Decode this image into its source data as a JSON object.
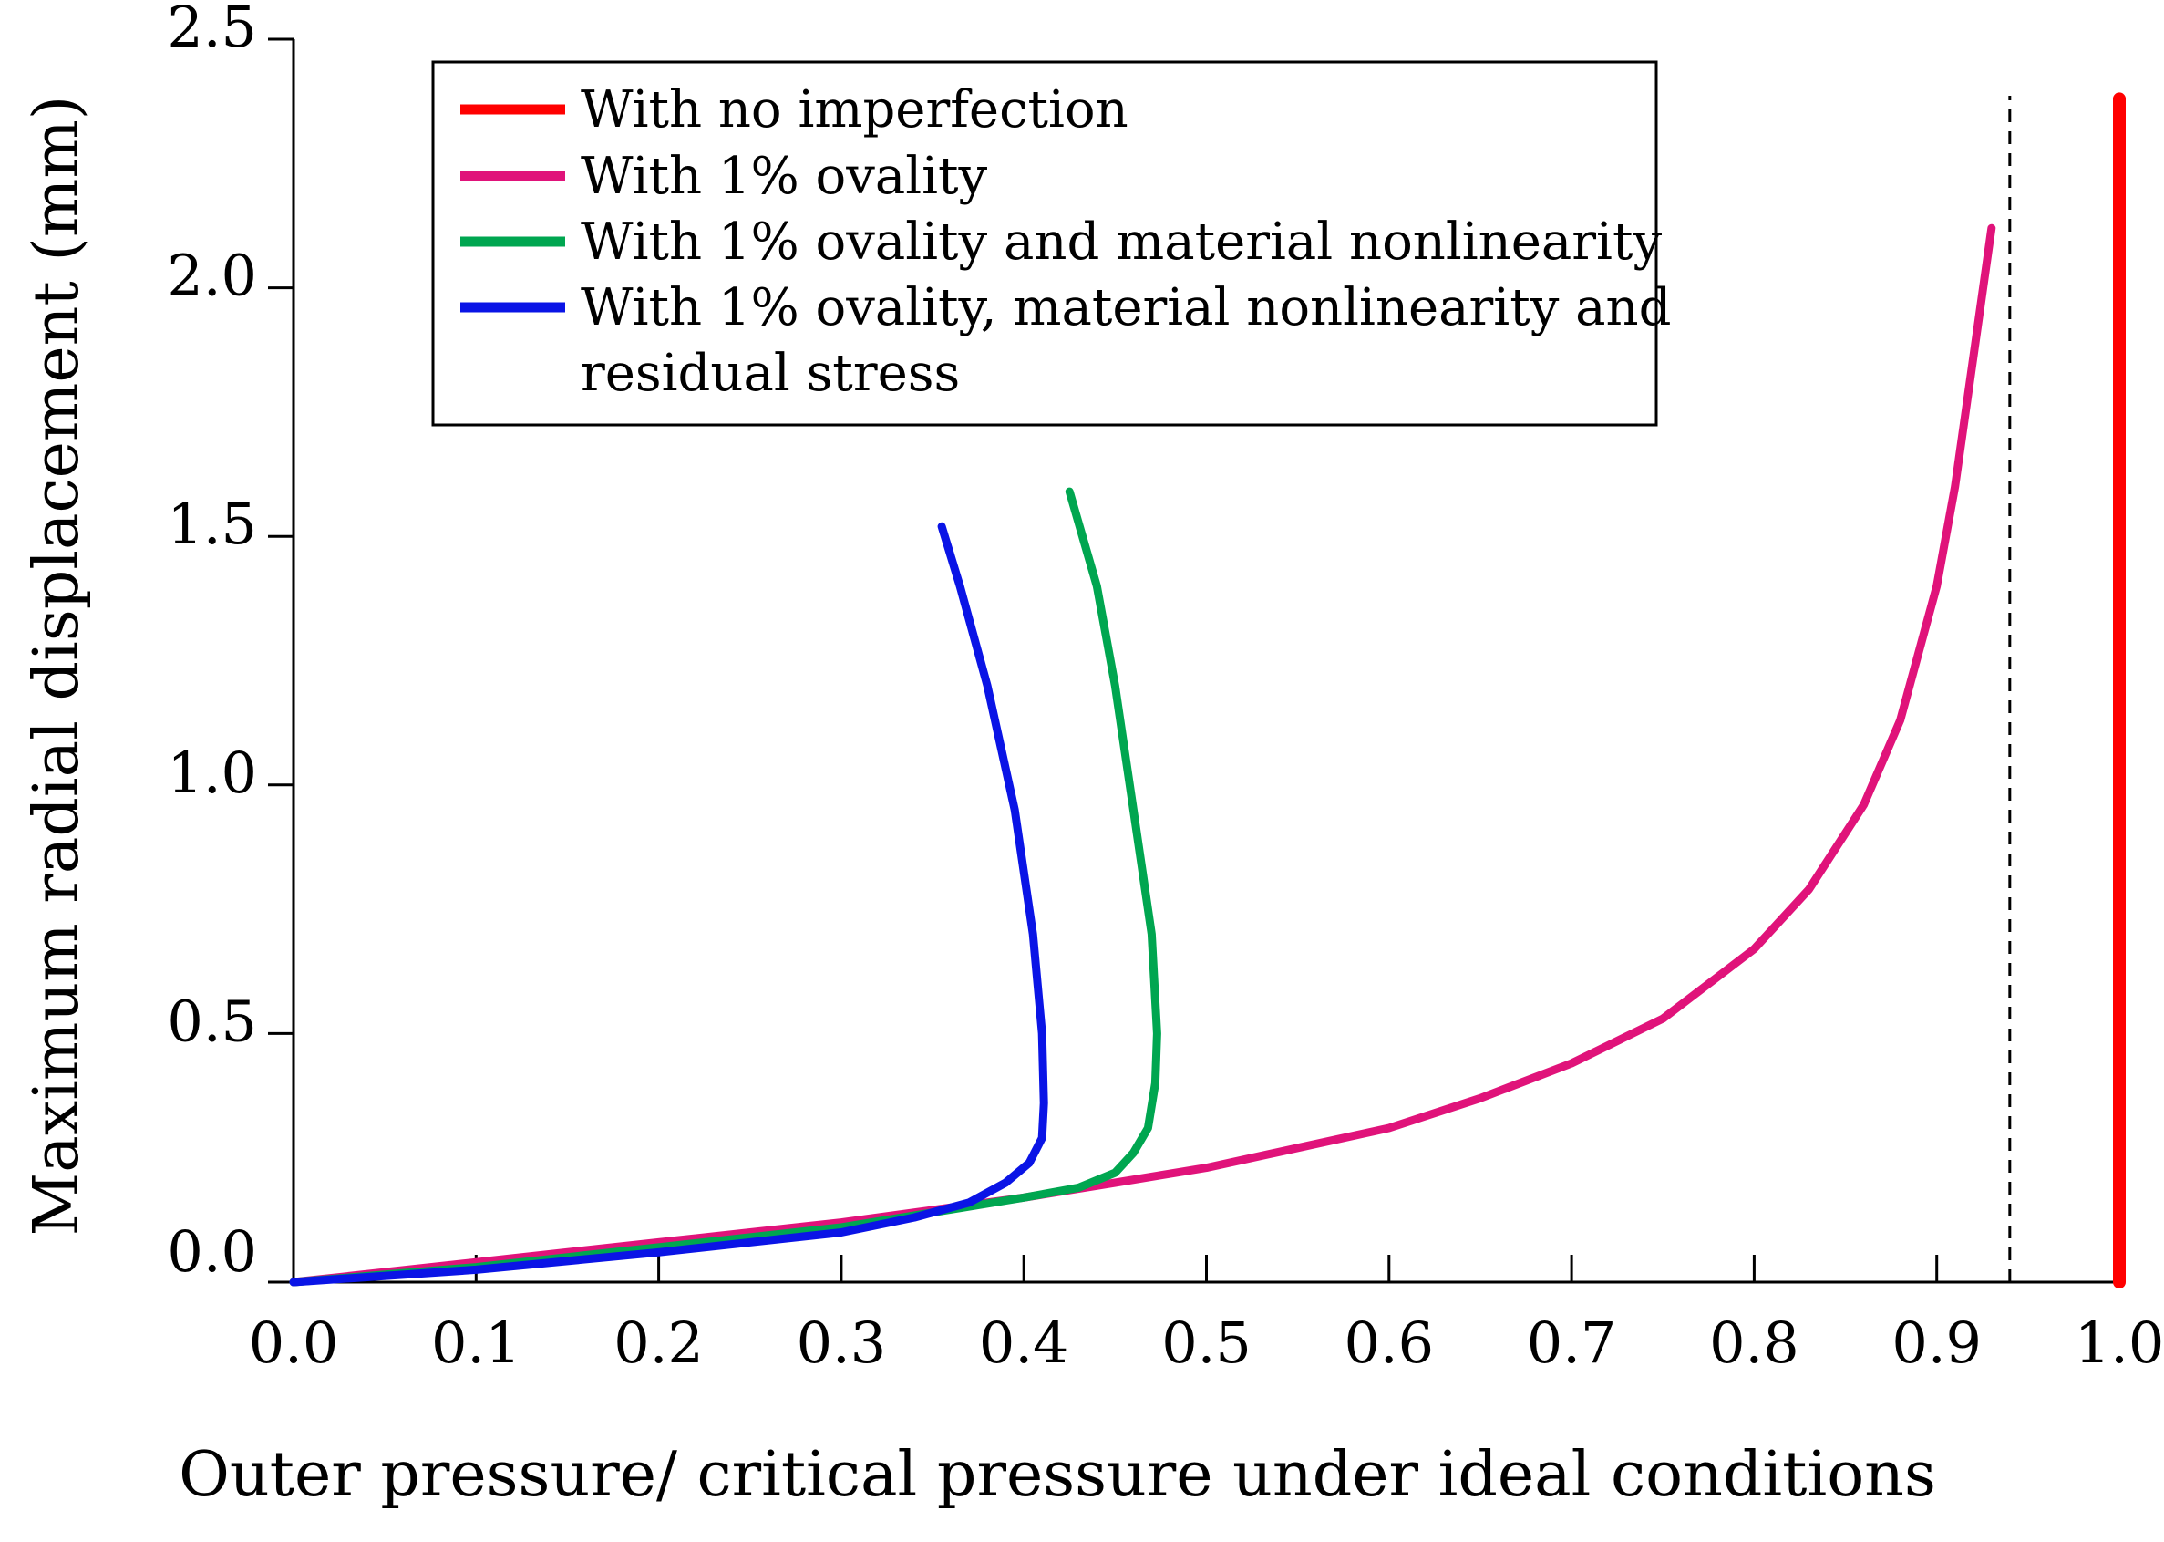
{
  "chart_data": {
    "type": "line",
    "title": "",
    "xlabel": "Outer pressure/ critical pressure under ideal conditions",
    "ylabel": "Maximum radial displacement (mm)",
    "xlim": [
      0.0,
      1.0
    ],
    "ylim": [
      0.0,
      2.5
    ],
    "xticks": [
      "0.0",
      "0.1",
      "0.2",
      "0.3",
      "0.4",
      "0.5",
      "0.6",
      "0.7",
      "0.8",
      "0.9",
      "1.0"
    ],
    "yticks": [
      "0.0",
      "0.5",
      "1.0",
      "1.5",
      "2.0",
      "2.5"
    ],
    "grid": false,
    "legend_position": "top-left",
    "reference_line": {
      "x": 0.94,
      "style": "dashed"
    },
    "series": [
      {
        "name": "With no imperfection",
        "color": "#ff0000",
        "x": [
          1.0,
          1.0
        ],
        "y": [
          0.0,
          2.38
        ]
      },
      {
        "name": "With 1% ovality",
        "color": "#e0137a",
        "x": [
          0.0,
          0.1,
          0.2,
          0.3,
          0.4,
          0.45,
          0.5,
          0.55,
          0.6,
          0.65,
          0.7,
          0.75,
          0.8,
          0.83,
          0.86,
          0.88,
          0.9,
          0.91,
          0.92,
          0.93
        ],
        "y": [
          0.0,
          0.04,
          0.08,
          0.12,
          0.17,
          0.2,
          0.23,
          0.27,
          0.31,
          0.37,
          0.44,
          0.53,
          0.67,
          0.79,
          0.96,
          1.13,
          1.4,
          1.6,
          1.86,
          2.12
        ]
      },
      {
        "name": "With 1% ovality and material nonlinearity",
        "color": "#00a650",
        "x": [
          0.0,
          0.1,
          0.2,
          0.3,
          0.35,
          0.4,
          0.43,
          0.45,
          0.46,
          0.468,
          0.472,
          0.473,
          0.47,
          0.46,
          0.45,
          0.44,
          0.425
        ],
        "y": [
          0.0,
          0.03,
          0.07,
          0.11,
          0.14,
          0.17,
          0.19,
          0.22,
          0.26,
          0.31,
          0.4,
          0.5,
          0.7,
          0.95,
          1.2,
          1.4,
          1.59
        ]
      },
      {
        "name": "With 1% ovality, material nonlinearity and residual stress",
        "color": "#0a14e6",
        "x": [
          0.0,
          0.1,
          0.2,
          0.3,
          0.34,
          0.37,
          0.39,
          0.403,
          0.41,
          0.411,
          0.41,
          0.405,
          0.395,
          0.38,
          0.365,
          0.355
        ],
        "y": [
          0.0,
          0.025,
          0.06,
          0.1,
          0.13,
          0.16,
          0.2,
          0.24,
          0.29,
          0.36,
          0.5,
          0.7,
          0.95,
          1.2,
          1.4,
          1.52
        ]
      }
    ]
  }
}
